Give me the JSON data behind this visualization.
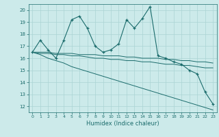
{
  "xlabel": "Humidex (Indice chaleur)",
  "bg_color": "#cceaea",
  "grid_color": "#aad4d4",
  "line_color": "#1a6b6b",
  "x_values": [
    0,
    1,
    2,
    3,
    4,
    5,
    6,
    7,
    8,
    9,
    10,
    11,
    12,
    13,
    14,
    15,
    16,
    17,
    18,
    19,
    20,
    21,
    22,
    23
  ],
  "y_main": [
    16.5,
    17.5,
    16.7,
    16.0,
    17.5,
    19.2,
    19.5,
    18.5,
    17.0,
    16.5,
    16.7,
    17.2,
    19.2,
    18.5,
    19.3,
    20.3,
    16.2,
    16.0,
    15.7,
    15.5,
    15.0,
    14.7,
    13.2,
    12.2
  ],
  "y_trend1": [
    16.5,
    16.5,
    16.5,
    16.4,
    16.4,
    16.4,
    16.3,
    16.3,
    16.3,
    16.2,
    16.2,
    16.2,
    16.1,
    16.1,
    16.0,
    16.0,
    16.0,
    15.9,
    15.9,
    15.8,
    15.8,
    15.7,
    15.7,
    15.6
  ],
  "y_trend2": [
    16.5,
    16.4,
    16.4,
    16.3,
    16.3,
    16.2,
    16.2,
    16.1,
    16.0,
    16.0,
    15.9,
    15.9,
    15.8,
    15.8,
    15.7,
    15.7,
    15.6,
    15.5,
    15.5,
    15.4,
    15.4,
    15.3,
    15.2,
    15.2
  ],
  "y_trend3": [
    16.5,
    16.3,
    16.0,
    15.8,
    15.6,
    15.3,
    15.1,
    14.9,
    14.7,
    14.5,
    14.3,
    14.1,
    13.9,
    13.7,
    13.5,
    13.3,
    13.1,
    12.9,
    12.7,
    12.5,
    12.3,
    12.1,
    11.9,
    11.7
  ],
  "ylim": [
    11.5,
    20.5
  ],
  "xlim": [
    -0.5,
    23.5
  ],
  "yticks": [
    12,
    13,
    14,
    15,
    16,
    17,
    18,
    19,
    20
  ],
  "xticks": [
    0,
    1,
    2,
    3,
    4,
    5,
    6,
    7,
    8,
    9,
    10,
    11,
    12,
    13,
    14,
    15,
    16,
    17,
    18,
    19,
    20,
    21,
    22,
    23
  ]
}
